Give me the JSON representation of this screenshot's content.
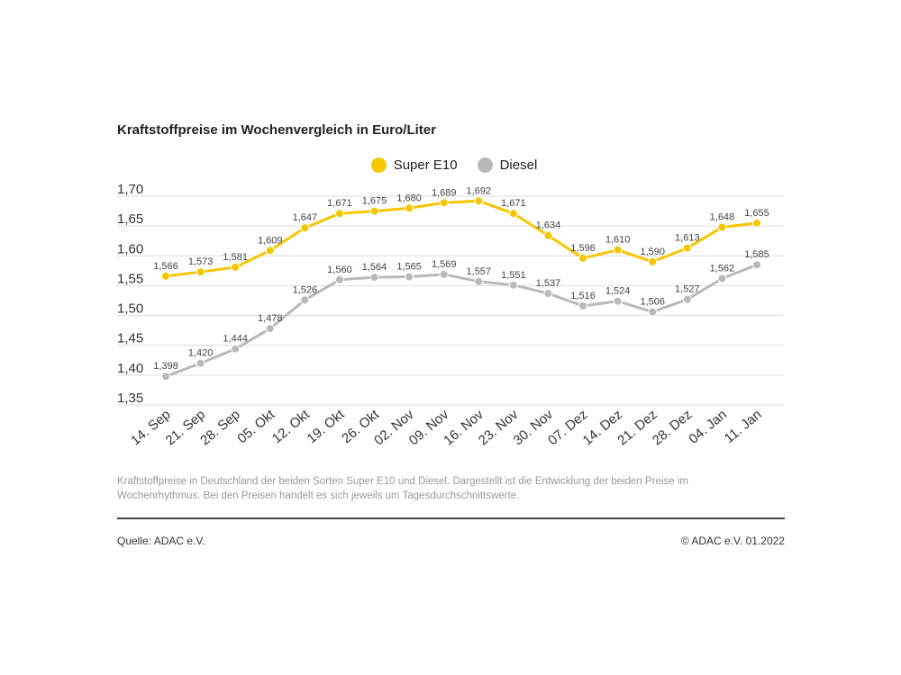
{
  "chart_data": {
    "type": "line",
    "title": "Kraftstoffpreise im Wochenvergleich in Euro/Liter",
    "categories": [
      "14. Sep",
      "21. Sep",
      "28. Sep",
      "05. Okt",
      "12. Okt",
      "19. Okt",
      "26. Okt",
      "02. Nov",
      "09. Nov",
      "16. Nov",
      "23. Nov",
      "30. Nov",
      "07. Dez",
      "14. Dez",
      "21. Dez",
      "28. Dez",
      "04. Jan",
      "11. Jan"
    ],
    "series": [
      {
        "name": "Super E10",
        "color": "#f7c600",
        "values": [
          1.566,
          1.573,
          1.581,
          1.609,
          1.647,
          1.671,
          1.675,
          1.68,
          1.689,
          1.692,
          1.671,
          1.634,
          1.596,
          1.61,
          1.59,
          1.613,
          1.648,
          1.655
        ],
        "labels": [
          "1,566",
          "1,573",
          "1,581",
          "1,609",
          "1,647",
          "1,671",
          "1,675",
          "1,680",
          "1,689",
          "1,692",
          "1,671",
          "1,634",
          "1,596",
          "1,610",
          "1,590",
          "1,613",
          "1,648",
          "1,655"
        ]
      },
      {
        "name": "Diesel",
        "color": "#b9b9b9",
        "values": [
          1.398,
          1.42,
          1.444,
          1.478,
          1.526,
          1.56,
          1.564,
          1.565,
          1.569,
          1.557,
          1.551,
          1.537,
          1.516,
          1.524,
          1.506,
          1.527,
          1.562,
          1.585
        ],
        "labels": [
          "1,398",
          "1,420",
          "1,444",
          "1,478",
          "1,526",
          "1,560",
          "1,564",
          "1,565",
          "1,569",
          "1,557",
          "1,551",
          "1,537",
          "1,516",
          "1,524",
          "1,506",
          "1,527",
          "1,562",
          "1,585"
        ]
      }
    ],
    "yticks": [
      1.35,
      1.4,
      1.45,
      1.5,
      1.55,
      1.6,
      1.65,
      1.7
    ],
    "ytick_labels": [
      "1,35",
      "1,40",
      "1,45",
      "1,50",
      "1,55",
      "1,60",
      "1,65",
      "1,70"
    ],
    "ylim": [
      1.35,
      1.7
    ],
    "grid": true,
    "legend": "top-center"
  },
  "caption": "Kraftstoffpreise in Deutschland der beiden Sorten Super E10 und Diesel. Dargestellt ist die Entwicklung der beiden Preise im Wochenrhythmus. Bei den Preisen handelt es sich jeweils um Tagesdurchschnittswerte.",
  "footer": {
    "source": "Quelle: ADAC e.V.",
    "copyright": "© ADAC e.V. 01.2022"
  }
}
